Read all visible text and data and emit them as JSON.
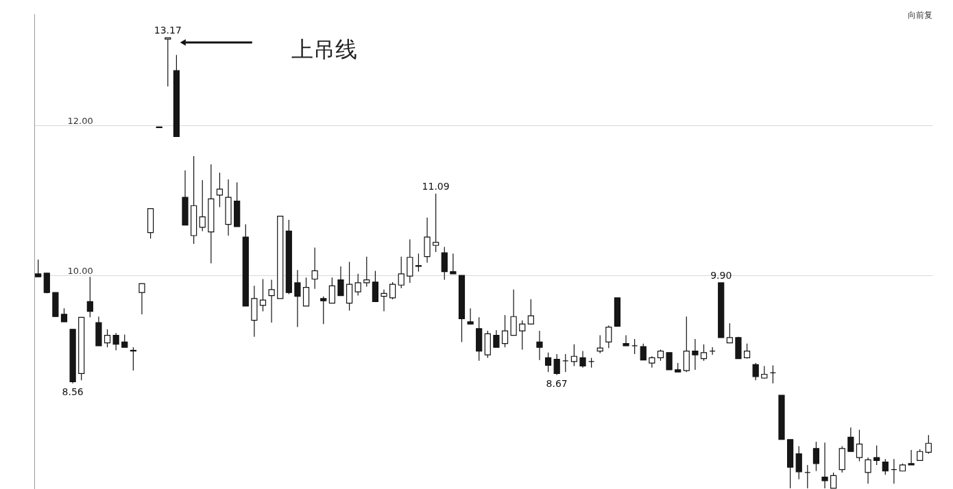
{
  "chart_data": {
    "type": "candlestick",
    "categories": [
      null,
      null,
      null,
      null,
      null,
      null,
      null,
      null,
      null,
      null,
      null,
      null,
      null,
      null,
      null,
      null,
      null,
      null,
      null,
      null,
      null,
      null,
      null,
      null,
      null,
      null,
      null,
      null,
      null,
      null,
      null,
      null,
      null,
      null,
      null,
      null,
      null,
      null,
      null,
      null,
      null,
      null,
      null,
      null,
      null,
      null,
      null,
      null,
      null,
      null,
      null,
      null,
      null,
      null,
      null,
      null,
      null,
      null,
      null,
      null,
      null,
      null,
      null,
      null,
      null,
      null,
      null,
      null,
      null,
      null,
      null,
      null,
      null,
      null,
      null,
      null,
      null,
      null,
      null,
      null,
      null,
      null,
      null,
      null,
      null,
      null,
      null,
      null,
      null,
      null,
      null,
      null,
      null,
      null,
      null,
      null,
      null,
      null,
      null,
      null,
      null,
      null,
      null,
      null
    ],
    "ohlc": [
      [
        10.02,
        10.21,
        9.98,
        9.98
      ],
      [
        10.03,
        10.03,
        9.76,
        9.77
      ],
      [
        9.77,
        9.77,
        9.45,
        9.45
      ],
      [
        9.48,
        9.56,
        9.38,
        9.38
      ],
      [
        9.28,
        9.28,
        8.56,
        8.58
      ],
      [
        8.69,
        9.44,
        8.6,
        9.44
      ],
      [
        9.65,
        9.98,
        9.44,
        9.52
      ],
      [
        9.37,
        9.45,
        9.06,
        9.06
      ],
      [
        9.1,
        9.28,
        9.04,
        9.2
      ],
      [
        9.2,
        9.23,
        9.0,
        9.08
      ],
      [
        9.11,
        9.21,
        9.04,
        9.04
      ],
      [
        9.0,
        9.04,
        8.73,
        8.99
      ],
      [
        9.77,
        9.89,
        9.48,
        9.89
      ],
      [
        10.57,
        10.89,
        10.49,
        10.89
      ],
      [
        11.98,
        11.98,
        11.97,
        11.97
      ],
      [
        13.15,
        13.17,
        12.52,
        13.17
      ],
      [
        12.73,
        12.94,
        11.85,
        11.85
      ],
      [
        11.04,
        11.4,
        10.67,
        10.67
      ],
      [
        10.53,
        11.59,
        10.42,
        10.93
      ],
      [
        10.64,
        11.27,
        10.59,
        10.78
      ],
      [
        10.58,
        11.48,
        10.16,
        11.02
      ],
      [
        11.07,
        11.37,
        10.91,
        11.15
      ],
      [
        10.68,
        11.28,
        10.53,
        11.04
      ],
      [
        10.99,
        11.24,
        10.65,
        10.65
      ],
      [
        10.51,
        10.68,
        9.59,
        9.59
      ],
      [
        9.4,
        9.86,
        9.18,
        9.69
      ],
      [
        9.6,
        9.95,
        9.52,
        9.67
      ],
      [
        9.73,
        9.94,
        9.37,
        9.81
      ],
      [
        9.69,
        10.79,
        9.69,
        10.79
      ],
      [
        10.59,
        10.74,
        9.75,
        9.77
      ],
      [
        9.9,
        10.07,
        9.31,
        9.72
      ],
      [
        9.59,
        9.97,
        9.59,
        9.84
      ],
      [
        9.95,
        10.37,
        9.82,
        10.06
      ],
      [
        9.69,
        9.72,
        9.35,
        9.66
      ],
      [
        9.63,
        9.97,
        9.63,
        9.86
      ],
      [
        9.94,
        10.12,
        9.73,
        9.73
      ],
      [
        9.63,
        10.18,
        9.53,
        9.88
      ],
      [
        9.78,
        10.02,
        9.73,
        9.9
      ],
      [
        9.9,
        10.25,
        9.85,
        9.94
      ],
      [
        9.91,
        10.06,
        9.65,
        9.65
      ],
      [
        9.72,
        9.81,
        9.52,
        9.76
      ],
      [
        9.7,
        9.91,
        9.68,
        9.88
      ],
      [
        9.87,
        10.25,
        9.83,
        10.02
      ],
      [
        9.99,
        10.48,
        9.9,
        10.24
      ],
      [
        10.12,
        10.29,
        10.05,
        10.13
      ],
      [
        10.25,
        10.77,
        10.17,
        10.51
      ],
      [
        10.4,
        11.09,
        10.31,
        10.44
      ],
      [
        10.3,
        10.38,
        9.94,
        10.05
      ],
      [
        10.05,
        10.29,
        10.02,
        10.02
      ],
      [
        10.0,
        10.0,
        9.11,
        9.42
      ],
      [
        9.38,
        9.56,
        9.35,
        9.35
      ],
      [
        9.29,
        9.44,
        8.86,
        8.99
      ],
      [
        8.94,
        9.26,
        8.9,
        9.22
      ],
      [
        9.2,
        9.27,
        9.04,
        9.04
      ],
      [
        9.09,
        9.47,
        9.04,
        9.26
      ],
      [
        9.2,
        9.81,
        9.2,
        9.45
      ],
      [
        9.26,
        9.4,
        9.01,
        9.35
      ],
      [
        9.35,
        9.68,
        9.35,
        9.46
      ],
      [
        9.11,
        9.26,
        8.87,
        9.04
      ],
      [
        8.9,
        8.97,
        8.71,
        8.8
      ],
      [
        8.88,
        8.95,
        8.67,
        8.69
      ],
      [
        8.86,
        8.95,
        8.71,
        8.86
      ],
      [
        8.85,
        9.08,
        8.79,
        8.92
      ],
      [
        8.9,
        8.99,
        8.77,
        8.79
      ],
      [
        8.85,
        8.9,
        8.77,
        8.85
      ],
      [
        8.99,
        9.2,
        8.96,
        9.03
      ],
      [
        9.11,
        9.33,
        9.03,
        9.31
      ],
      [
        9.7,
        9.7,
        9.32,
        9.32
      ],
      [
        9.09,
        9.2,
        9.06,
        9.06
      ],
      [
        9.06,
        9.15,
        8.95,
        9.06
      ],
      [
        9.05,
        9.09,
        8.87,
        8.87
      ],
      [
        8.83,
        8.92,
        8.77,
        8.9
      ],
      [
        8.9,
        9.01,
        8.86,
        8.99
      ],
      [
        8.97,
        8.97,
        8.74,
        8.74
      ],
      [
        8.74,
        8.83,
        8.71,
        8.71
      ],
      [
        8.73,
        9.45,
        8.71,
        8.99
      ],
      [
        8.99,
        9.15,
        8.74,
        8.94
      ],
      [
        8.89,
        9.08,
        8.86,
        8.97
      ],
      [
        8.99,
        9.04,
        8.94,
        8.99
      ],
      [
        9.9,
        9.9,
        9.17,
        9.17
      ],
      [
        9.1,
        9.36,
        9.1,
        9.17
      ],
      [
        9.17,
        9.18,
        8.89,
        8.89
      ],
      [
        8.9,
        9.09,
        8.89,
        8.99
      ],
      [
        8.81,
        8.83,
        8.6,
        8.65
      ],
      [
        8.63,
        8.79,
        8.62,
        8.68
      ],
      [
        8.7,
        8.8,
        8.56,
        8.7
      ],
      [
        8.4,
        8.4,
        7.81,
        7.81
      ],
      [
        7.81,
        7.81,
        7.16,
        7.44
      ],
      [
        7.62,
        7.72,
        7.28,
        7.38
      ],
      [
        7.37,
        7.47,
        7.16,
        7.37
      ],
      [
        7.69,
        7.78,
        7.39,
        7.49
      ],
      [
        7.31,
        7.77,
        7.16,
        7.26
      ],
      [
        7.16,
        7.37,
        7.16,
        7.33
      ],
      [
        7.41,
        7.72,
        7.37,
        7.69
      ],
      [
        7.84,
        7.97,
        7.65,
        7.65
      ],
      [
        7.57,
        7.94,
        7.52,
        7.75
      ],
      [
        7.37,
        7.57,
        7.22,
        7.54
      ],
      [
        7.57,
        7.73,
        7.47,
        7.53
      ],
      [
        7.51,
        7.55,
        7.34,
        7.39
      ],
      [
        7.41,
        7.55,
        7.22,
        7.41
      ],
      [
        7.39,
        7.49,
        7.39,
        7.47
      ],
      [
        7.49,
        7.67,
        7.47,
        7.47
      ],
      [
        7.53,
        7.68,
        7.53,
        7.65
      ],
      [
        7.64,
        7.87,
        7.62,
        7.76
      ]
    ],
    "ylim": [
      7.15,
      13.49
    ],
    "yticks": [
      {
        "value": 10,
        "label": "10.00"
      },
      {
        "value": 12,
        "label": "12.00"
      }
    ],
    "grid": "y",
    "tick_labels": "y",
    "annotations": [
      {
        "text": "13.17",
        "y": 13.17
      },
      "上吊线",
      {
        "text": "8.56",
        "y": 8.56
      },
      {
        "text": "11.09",
        "y": 11.09
      },
      {
        "text": "8.67",
        "y": 8.67
      },
      {
        "text": "9.90",
        "y": 9.9
      },
      "向前复"
    ]
  }
}
